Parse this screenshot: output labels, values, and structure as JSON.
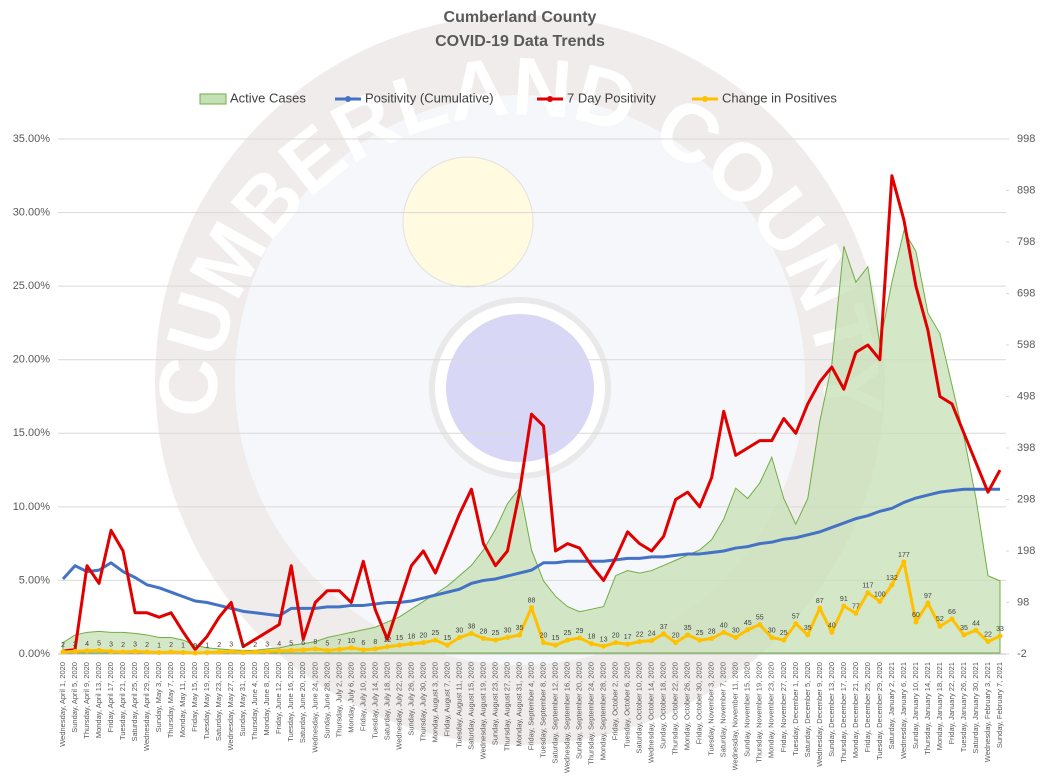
{
  "watermark": "CUMBERLAND COUNTY",
  "chart_data": {
    "type": "line",
    "title": "Cumberland County",
    "subtitle": "COVID-19 Data Trends",
    "categories": [
      "Wednesday, April 1, 2020",
      "Sunday, April 5, 2020",
      "Thursday, April 9, 2020",
      "Monday, April 13, 2020",
      "Friday, April 17, 2020",
      "Tuesday, April 21, 2020",
      "Saturday, April 25, 2020",
      "Wednesday, April 29, 2020",
      "Sunday, May 3, 2020",
      "Thursday, May 7, 2020",
      "Monday, May 11, 2020",
      "Friday, May 15, 2020",
      "Tuesday, May 19, 2020",
      "Saturday, May 23, 2020",
      "Wednesday, May 27, 2020",
      "Sunday, May 31, 2020",
      "Thursday, June 4, 2020",
      "Monday, June 8, 2020",
      "Friday, June 12, 2020",
      "Tuesday, June 16, 2020",
      "Saturday, June 20, 2020",
      "Wednesday, June 24, 2020",
      "Sunday, June 28, 2020",
      "Thursday, July 2, 2020",
      "Monday, July 6, 2020",
      "Friday, July 10, 2020",
      "Tuesday, July 14, 2020",
      "Saturday, July 18, 2020",
      "Wednesday, July 22, 2020",
      "Sunday, July 26, 2020",
      "Thursday, July 30, 2020",
      "Monday, August 3, 2020",
      "Friday, August 7, 2020",
      "Tuesday, August 11, 2020",
      "Saturday, August 15, 2020",
      "Wednesday, August 19, 2020",
      "Sunday, August 23, 2020",
      "Thursday, August 27, 2020",
      "Monday, August 31, 2020",
      "Friday, September 4, 2020",
      "Tuesday, September 8, 2020",
      "Saturday, September 12, 2020",
      "Wednesday, September 16, 2020",
      "Sunday, September 20, 2020",
      "Thursday, September 24, 2020",
      "Monday, September 28, 2020",
      "Friday, October 2, 2020",
      "Tuesday, October 6, 2020",
      "Saturday, October 10, 2020",
      "Wednesday, October 14, 2020",
      "Sunday, October 18, 2020",
      "Thursday, October 22, 2020",
      "Monday, October 26, 2020",
      "Friday, October 30, 2020",
      "Tuesday, November 3, 2020",
      "Saturday, November 7, 2020",
      "Wednesday, November 11, 2020",
      "Sunday, November 15, 2020",
      "Thursday, November 19, 2020",
      "Monday, November 23, 2020",
      "Friday, November 27, 2020",
      "Tuesday, December 1, 2020",
      "Saturday, December 5, 2020",
      "Wednesday, December 9, 2020",
      "Sunday, December 13, 2020",
      "Thursday, December 17, 2020",
      "Monday, December 21, 2020",
      "Friday, December 25, 2020",
      "Tuesday, December 29, 2020",
      "Saturday, January 2, 2021",
      "Wednesday, January 6, 2021",
      "Sunday, January 10, 2021",
      "Thursday, January 14, 2021",
      "Monday, January 18, 2021",
      "Friday, January 22, 2021",
      "Tuesday, January 26, 2021",
      "Saturday, January 30, 2021",
      "Wednesday, February 3, 2021",
      "Sunday, February 7, 2021"
    ],
    "series": [
      {
        "name": "Active Cases",
        "type": "area",
        "axis": "y2",
        "color": "#70ad47",
        "fill": "#c5e0b4",
        "values": [
          20,
          35,
          40,
          42,
          40,
          40,
          38,
          35,
          30,
          30,
          25,
          15,
          10,
          8,
          6,
          5,
          5,
          8,
          10,
          15,
          18,
          22,
          30,
          35,
          40,
          45,
          50,
          60,
          70,
          85,
          100,
          115,
          130,
          150,
          170,
          200,
          240,
          290,
          320,
          200,
          140,
          110,
          90,
          80,
          85,
          90,
          150,
          160,
          155,
          160,
          170,
          180,
          190,
          200,
          220,
          260,
          320,
          300,
          330,
          380,
          300,
          250,
          300,
          450,
          560,
          790,
          720,
          750,
          600,
          720,
          820,
          780,
          660,
          620,
          520,
          420,
          300,
          150,
          140
        ]
      },
      {
        "name": "Positivity (Cumulative)",
        "type": "line",
        "color": "#4472c4",
        "values": [
          5.1,
          6.0,
          5.6,
          5.7,
          6.2,
          5.6,
          5.2,
          4.7,
          4.5,
          4.2,
          3.9,
          3.6,
          3.5,
          3.3,
          3.1,
          2.9,
          2.8,
          2.7,
          2.6,
          3.1,
          3.1,
          3.1,
          3.2,
          3.2,
          3.3,
          3.3,
          3.4,
          3.5,
          3.5,
          3.6,
          3.8,
          4.0,
          4.2,
          4.4,
          4.8,
          5.0,
          5.1,
          5.3,
          5.5,
          5.7,
          6.2,
          6.2,
          6.3,
          6.3,
          6.3,
          6.3,
          6.4,
          6.5,
          6.5,
          6.6,
          6.6,
          6.7,
          6.8,
          6.8,
          6.9,
          7.0,
          7.2,
          7.3,
          7.5,
          7.6,
          7.8,
          7.9,
          8.1,
          8.3,
          8.6,
          8.9,
          9.2,
          9.4,
          9.7,
          9.9,
          10.3,
          10.6,
          10.8,
          11.0,
          11.1,
          11.2,
          11.2,
          11.2,
          11.2
        ]
      },
      {
        "name": "7 Day Positivity",
        "type": "line",
        "color": "#e00000",
        "values": [
          0.2,
          0.3,
          6.0,
          4.8,
          8.4,
          7.0,
          2.8,
          2.8,
          2.5,
          2.8,
          1.5,
          0.3,
          1.2,
          2.5,
          3.5,
          0.5,
          1.0,
          1.5,
          2.0,
          6.0,
          1.0,
          3.5,
          4.3,
          4.3,
          3.5,
          6.3,
          3.0,
          1.0,
          3.5,
          6.0,
          7.0,
          5.5,
          7.5,
          9.5,
          11.2,
          7.5,
          6.0,
          7.0,
          11.0,
          16.3,
          15.5,
          7.0,
          7.5,
          7.2,
          6.0,
          5.0,
          6.5,
          8.3,
          7.5,
          7.0,
          8.0,
          10.5,
          11.0,
          10.0,
          12.0,
          16.5,
          13.5,
          14.0,
          14.5,
          14.5,
          16.0,
          15.0,
          17.0,
          18.5,
          19.5,
          18.0,
          20.5,
          21.0,
          20.0,
          32.5,
          29.5,
          25.0,
          22.0,
          17.5,
          17.0,
          15.0,
          13.0,
          11.0,
          12.5
        ]
      },
      {
        "name": "Change in Positives",
        "type": "line",
        "axis": "y2",
        "color": "#ffc000",
        "markers": true,
        "labels": true,
        "values": [
          2,
          3,
          4,
          5,
          3,
          2,
          3,
          2,
          1,
          2,
          1,
          0,
          1,
          2,
          3,
          1,
          2,
          3,
          4,
          5,
          6,
          8,
          5,
          7,
          10,
          6,
          8,
          12,
          15,
          18,
          20,
          25,
          15,
          30,
          38,
          28,
          25,
          30,
          35,
          88,
          20,
          15,
          25,
          29,
          18,
          13,
          20,
          17,
          22,
          24,
          37,
          20,
          35,
          25,
          28,
          40,
          30,
          45,
          55,
          30,
          25,
          57,
          35,
          87,
          40,
          91,
          77,
          117,
          100,
          132,
          177,
          60,
          97,
          52,
          66,
          35,
          44,
          22,
          33
        ]
      }
    ],
    "ylim": [
      0,
      35
    ],
    "yticks": [
      {
        "value": 0,
        "label": "0.00%"
      },
      {
        "value": 5,
        "label": "5.00%"
      },
      {
        "value": 10,
        "label": "10.00%"
      },
      {
        "value": 15,
        "label": "15.00%"
      },
      {
        "value": 20,
        "label": "20.00%"
      },
      {
        "value": 25,
        "label": "25.00%"
      },
      {
        "value": 30,
        "label": "30.00%"
      },
      {
        "value": 35,
        "label": "35.00%"
      }
    ],
    "y2lim": [
      -2,
      998
    ],
    "y2ticks": [
      -2,
      98,
      198,
      298,
      398,
      498,
      598,
      698,
      798,
      898,
      998
    ],
    "grid": true,
    "legend": "top"
  }
}
